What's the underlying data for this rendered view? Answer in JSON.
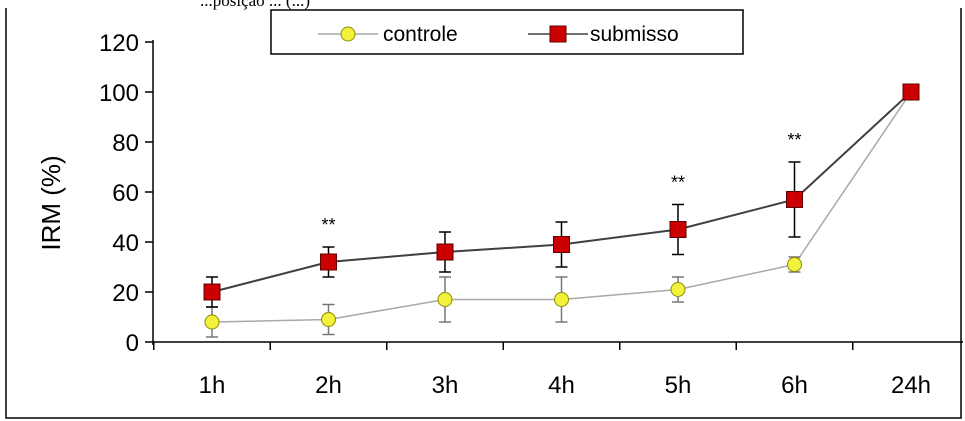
{
  "caption": "...posição ... (...)",
  "chart_data": {
    "type": "line",
    "categories": [
      "1h",
      "2h",
      "3h",
      "4h",
      "5h",
      "6h",
      "24h"
    ],
    "ylabel": "IRM (%)",
    "xlabel": "",
    "ylim": [
      0,
      120
    ],
    "yticks": [
      0,
      20,
      40,
      60,
      80,
      100,
      120
    ],
    "grid": false,
    "legend": "top-center",
    "series": [
      {
        "name": "controle",
        "values": [
          8,
          9,
          17,
          17,
          21,
          31,
          100
        ],
        "errors": [
          6,
          6,
          9,
          9,
          5,
          3,
          0
        ],
        "marker": "circle",
        "color": "#f2f23c",
        "line_color": "#a8a8a8"
      },
      {
        "name": "submisso",
        "values": [
          20,
          32,
          36,
          39,
          45,
          57,
          100
        ],
        "errors": [
          6,
          6,
          8,
          9,
          10,
          15,
          0
        ],
        "marker": "square",
        "color": "#cc0000",
        "line_color": "#404040"
      }
    ],
    "annotations": [
      {
        "category": "2h",
        "text": "**"
      },
      {
        "category": "5h",
        "text": "**"
      },
      {
        "category": "6h",
        "text": "**"
      }
    ]
  }
}
